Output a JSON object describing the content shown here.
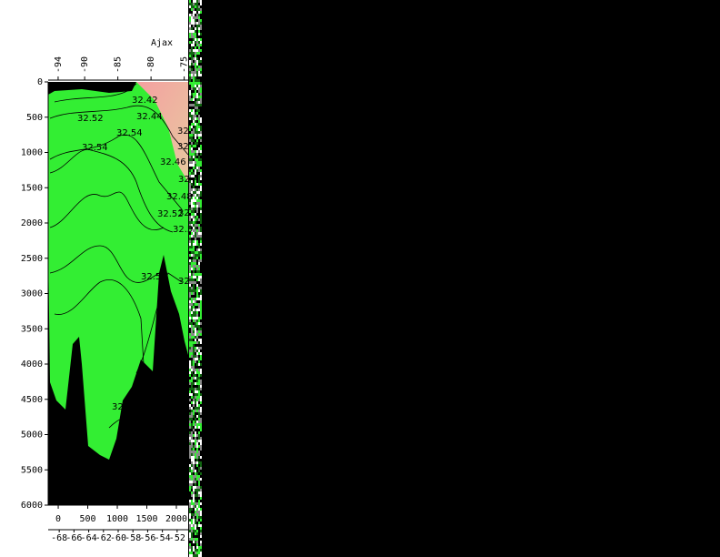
{
  "chart_data": {
    "type": "contour",
    "title": "Ajax",
    "ylim": [
      0,
      6000
    ],
    "yticks": [
      0,
      500,
      1000,
      1500,
      2000,
      2500,
      3000,
      3500,
      4000,
      4500,
      5000,
      5500,
      6000
    ],
    "xlim": [
      -170,
      2200
    ],
    "xticks": [
      0,
      500,
      1000,
      1500,
      2000
    ],
    "x2lim": [
      -69.5,
      -50.5
    ],
    "x2ticks": [
      -68,
      -66,
      -64,
      -62,
      -60,
      -58,
      -56,
      -54,
      -52
    ],
    "x3lim": [
      -95.5,
      -74.4
    ],
    "x3ticks": [
      -94,
      -90,
      -85,
      -80,
      -75
    ],
    "contour_labels": [
      32.42,
      32.44,
      32.52,
      32.54,
      32.54,
      32.46,
      32.48,
      32.52,
      32.5,
      32.5,
      32,
      32,
      32,
      32,
      32,
      32
    ],
    "fill_color": "#33ee33"
  }
}
